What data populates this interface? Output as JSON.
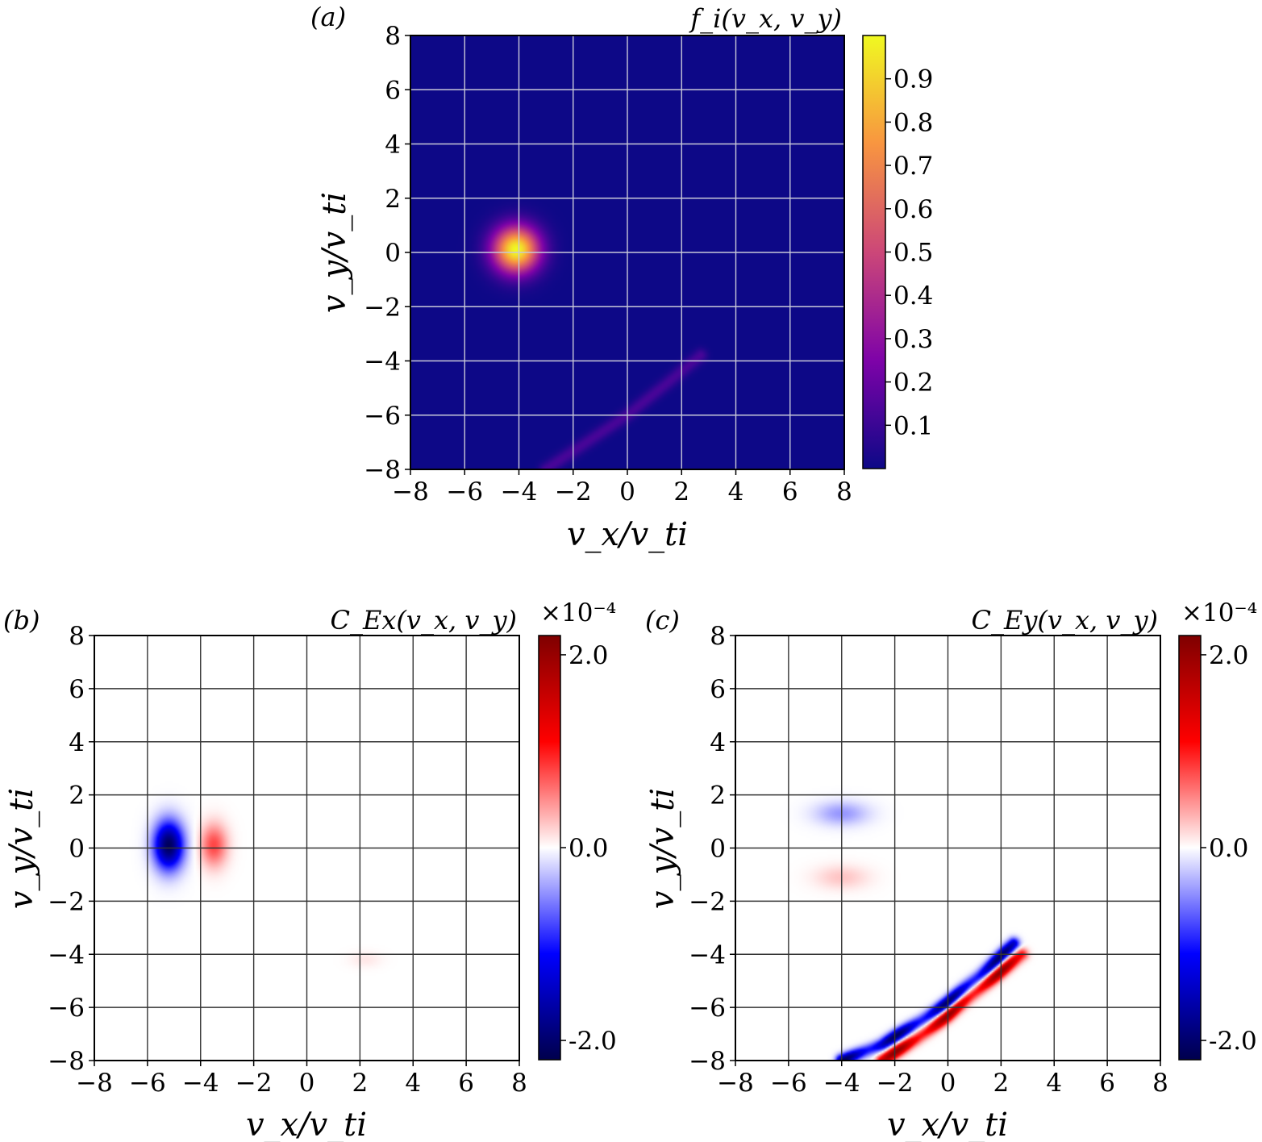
{
  "chart_data": [
    {
      "type": "heatmap",
      "panel_label": "(a)",
      "colorbar_title": "f_i(v_x, v_y)",
      "colorbar_ticks": [
        "0.1",
        "0.2",
        "0.3",
        "0.4",
        "0.5",
        "0.6",
        "0.7",
        "0.8",
        "0.9"
      ],
      "colorbar_range": [
        0.0,
        1.0
      ],
      "colormap": "plasma",
      "colormap_colors": [
        "#0d0887",
        "#7e03a8",
        "#cc4778",
        "#f89540",
        "#f0f921"
      ],
      "xlabel": "v_x/v_ti",
      "ylabel": "v_y/v_ti",
      "xlim": [
        -8,
        8
      ],
      "ylim": [
        -8,
        8
      ],
      "xticks": [
        "−8",
        "−6",
        "−4",
        "−2",
        "0",
        "2",
        "4",
        "6",
        "8"
      ],
      "yticks": [
        "−8",
        "−6",
        "−4",
        "−2",
        "0",
        "2",
        "4",
        "6",
        "8"
      ],
      "grid": true,
      "grid_color": "#c8c8d8",
      "features": [
        {
          "kind": "gaussian_peak",
          "center": [
            -4.1,
            0.1
          ],
          "width": 0.85,
          "peak": 1.0
        },
        {
          "kind": "arc",
          "points": [
            [
              -3.0,
              -8.0
            ],
            [
              -1.5,
              -7.0
            ],
            [
              0.0,
              -6.0
            ],
            [
              1.5,
              -4.8
            ],
            [
              2.7,
              -3.8
            ]
          ],
          "width": 0.25,
          "peak": 0.13
        }
      ]
    },
    {
      "type": "heatmap",
      "panel_label": "(b)",
      "colorbar_title": "C_Ex(v_x, v_y)",
      "colorbar_scale": "×10⁻⁴",
      "colorbar_ticks": [
        "2.0",
        "0.0",
        "-2.0"
      ],
      "colorbar_range": [
        -2.2,
        2.2
      ],
      "colormap": "seismic",
      "colormap_colors": [
        "#00004c",
        "#0000ff",
        "#ffffff",
        "#ff0000",
        "#7f0000"
      ],
      "xlabel": "v_x/v_ti",
      "ylabel": "v_y/v_ti",
      "xlim": [
        -8,
        8
      ],
      "ylim": [
        -8,
        8
      ],
      "xticks": [
        "−8",
        "−6",
        "−4",
        "−2",
        "0",
        "2",
        "4",
        "6",
        "8"
      ],
      "yticks": [
        "−8",
        "−6",
        "−4",
        "−2",
        "0",
        "2",
        "4",
        "6",
        "8"
      ],
      "grid": true,
      "grid_color": "#333333",
      "features": [
        {
          "kind": "blob",
          "center": [
            -5.2,
            0.1
          ],
          "sx": 0.55,
          "sy": 0.9,
          "peak": -2.1
        },
        {
          "kind": "blob",
          "center": [
            -3.5,
            0.1
          ],
          "sx": 0.5,
          "sy": 0.8,
          "peak": 0.8
        },
        {
          "kind": "blob",
          "center": [
            2.2,
            -4.2
          ],
          "sx": 0.6,
          "sy": 0.3,
          "peak": 0.1
        }
      ]
    },
    {
      "type": "heatmap",
      "panel_label": "(c)",
      "colorbar_title": "C_Ey(v_x, v_y)",
      "colorbar_scale": "×10⁻⁴",
      "colorbar_ticks": [
        "2.0",
        "0.0",
        "-2.0"
      ],
      "colorbar_range": [
        -2.2,
        2.2
      ],
      "colormap": "seismic",
      "colormap_colors": [
        "#00004c",
        "#0000ff",
        "#ffffff",
        "#ff0000",
        "#7f0000"
      ],
      "xlabel": "v_x/v_ti",
      "ylabel": "v_y/v_ti",
      "xlim": [
        -8,
        8
      ],
      "ylim": [
        -8,
        8
      ],
      "xticks": [
        "−8",
        "−6",
        "−4",
        "−2",
        "0",
        "2",
        "4",
        "6",
        "8"
      ],
      "yticks": [
        "−8",
        "−6",
        "−4",
        "−2",
        "0",
        "2",
        "4",
        "6",
        "8"
      ],
      "grid": true,
      "grid_color": "#333333",
      "features": [
        {
          "kind": "blob",
          "center": [
            -4.0,
            1.3
          ],
          "sx": 1.0,
          "sy": 0.45,
          "peak": -0.45
        },
        {
          "kind": "blob",
          "center": [
            -4.0,
            -1.1
          ],
          "sx": 1.0,
          "sy": 0.45,
          "peak": 0.25
        },
        {
          "kind": "arc_band",
          "points": [
            [
              -4.0,
              -8.0
            ],
            [
              -2.5,
              -7.4
            ],
            [
              -1.0,
              -6.5
            ],
            [
              0.0,
              -5.8
            ],
            [
              1.2,
              -4.8
            ],
            [
              2.5,
              -3.6
            ]
          ],
          "offset": -0.25,
          "width": 0.22,
          "peak": -2.1
        },
        {
          "kind": "arc_band",
          "points": [
            [
              -2.5,
              -8.0
            ],
            [
              -1.2,
              -7.2
            ],
            [
              0.0,
              -6.3
            ],
            [
              1.3,
              -5.2
            ],
            [
              2.8,
              -4.0
            ]
          ],
          "offset": 0.25,
          "width": 0.22,
          "peak": 2.1
        }
      ]
    }
  ]
}
